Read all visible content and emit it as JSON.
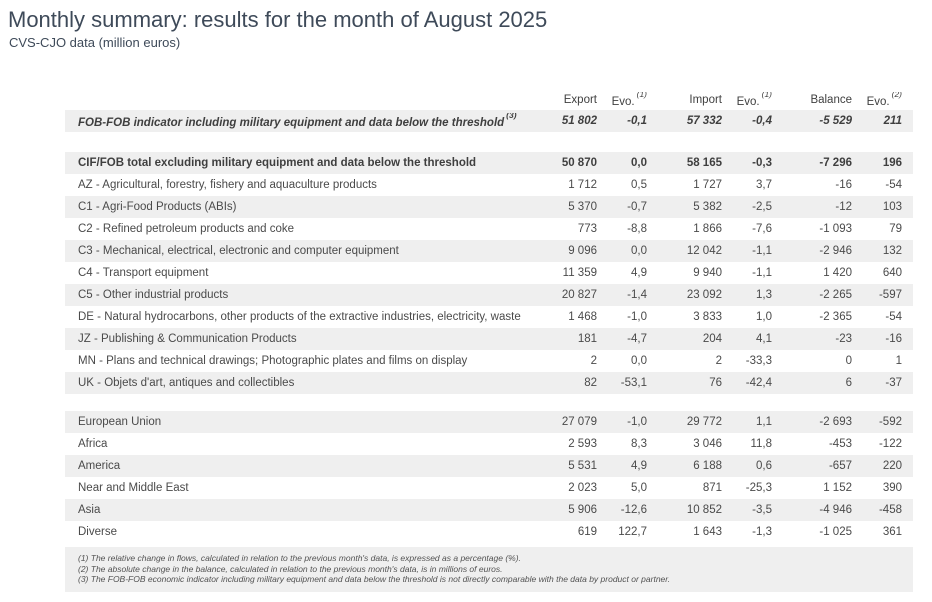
{
  "title": "Monthly summary: results for the month of August 2025",
  "subtitle": "CVS-CJO data (million euros)",
  "table": {
    "columns": [
      {
        "label": "Export",
        "sup": ""
      },
      {
        "label": "Evo.",
        "sup": "(1)"
      },
      {
        "label": "Import",
        "sup": ""
      },
      {
        "label": "Evo.",
        "sup": "(1)"
      },
      {
        "label": "Balance",
        "sup": ""
      },
      {
        "label": "Evo.",
        "sup": "(2)"
      }
    ],
    "sections": [
      {
        "rows": [
          {
            "label": "FOB-FOB indicator including military equipment and data below the threshold",
            "label_sup": "(3)",
            "style": "bold-italic",
            "values": [
              "51 802",
              "-0,1",
              "57 332",
              "-0,4",
              "-5 529",
              "211"
            ]
          }
        ]
      },
      {
        "rows": [
          {
            "label": "CIF/FOB total excluding military equipment and data below the threshold",
            "style": "bold",
            "values": [
              "50 870",
              "0,0",
              "58 165",
              "-0,3",
              "-7 296",
              "196"
            ]
          },
          {
            "label": "AZ - Agricultural, forestry, fishery and aquaculture products",
            "values": [
              "1 712",
              "0,5",
              "1 727",
              "3,7",
              "-16",
              "-54"
            ]
          },
          {
            "label": "C1 - Agri-Food Products (ABIs)",
            "values": [
              "5 370",
              "-0,7",
              "5 382",
              "-2,5",
              "-12",
              "103"
            ]
          },
          {
            "label": "C2 - Refined petroleum products and coke",
            "values": [
              "773",
              "-8,8",
              "1 866",
              "-7,6",
              "-1 093",
              "79"
            ]
          },
          {
            "label": "C3 - Mechanical, electrical, electronic and computer equipment",
            "values": [
              "9 096",
              "0,0",
              "12 042",
              "-1,1",
              "-2 946",
              "132"
            ]
          },
          {
            "label": "C4 - Transport equipment",
            "values": [
              "11 359",
              "4,9",
              "9 940",
              "-1,1",
              "1 420",
              "640"
            ]
          },
          {
            "label": "C5 - Other industrial products",
            "values": [
              "20 827",
              "-1,4",
              "23 092",
              "1,3",
              "-2 265",
              "-597"
            ]
          },
          {
            "label": "DE - Natural hydrocarbons, other products of the extractive industries, electricity, waste",
            "values": [
              "1 468",
              "-1,0",
              "3 833",
              "1,0",
              "-2 365",
              "-54"
            ]
          },
          {
            "label": "JZ - Publishing & Communication Products",
            "values": [
              "181",
              "-4,7",
              "204",
              "4,1",
              "-23",
              "-16"
            ]
          },
          {
            "label": "MN - Plans and technical drawings; Photographic plates and films on display",
            "values": [
              "2",
              "0,0",
              "2",
              "-33,3",
              "0",
              "1"
            ]
          },
          {
            "label": "UK - Objets d'art, antiques and collectibles",
            "values": [
              "82",
              "-53,1",
              "76",
              "-42,4",
              "6",
              "-37"
            ]
          }
        ]
      },
      {
        "rows": [
          {
            "label": "European Union",
            "values": [
              "27 079",
              "-1,0",
              "29 772",
              "1,1",
              "-2 693",
              "-592"
            ]
          },
          {
            "label": "Africa",
            "values": [
              "2 593",
              "8,3",
              "3 046",
              "11,8",
              "-453",
              "-122"
            ]
          },
          {
            "label": "America",
            "values": [
              "5 531",
              "4,9",
              "6 188",
              "0,6",
              "-657",
              "220"
            ]
          },
          {
            "label": "Near and Middle East",
            "values": [
              "2 023",
              "5,0",
              "871",
              "-25,3",
              "1 152",
              "390"
            ]
          },
          {
            "label": "Asia",
            "values": [
              "5 906",
              "-12,6",
              "10 852",
              "-3,5",
              "-4 946",
              "-458"
            ]
          },
          {
            "label": "Diverse",
            "values": [
              "619",
              "122,7",
              "1 643",
              "-1,3",
              "-1 025",
              "361"
            ]
          }
        ]
      }
    ]
  },
  "footnotes": [
    "(1) The relative change in flows, calculated in relation to the previous month's data, is expressed as a percentage (%).",
    "(2) The absolute change in the balance, calculated in relation to the previous month's data, is in millions of euros.",
    "(3) The FOB-FOB economic indicator including military equipment and data below the threshold is not directly comparable with the data by product or partner."
  ],
  "colors": {
    "title": "#3e4a59",
    "row_shaded": "#efefef",
    "text": "#4a4a4a"
  }
}
